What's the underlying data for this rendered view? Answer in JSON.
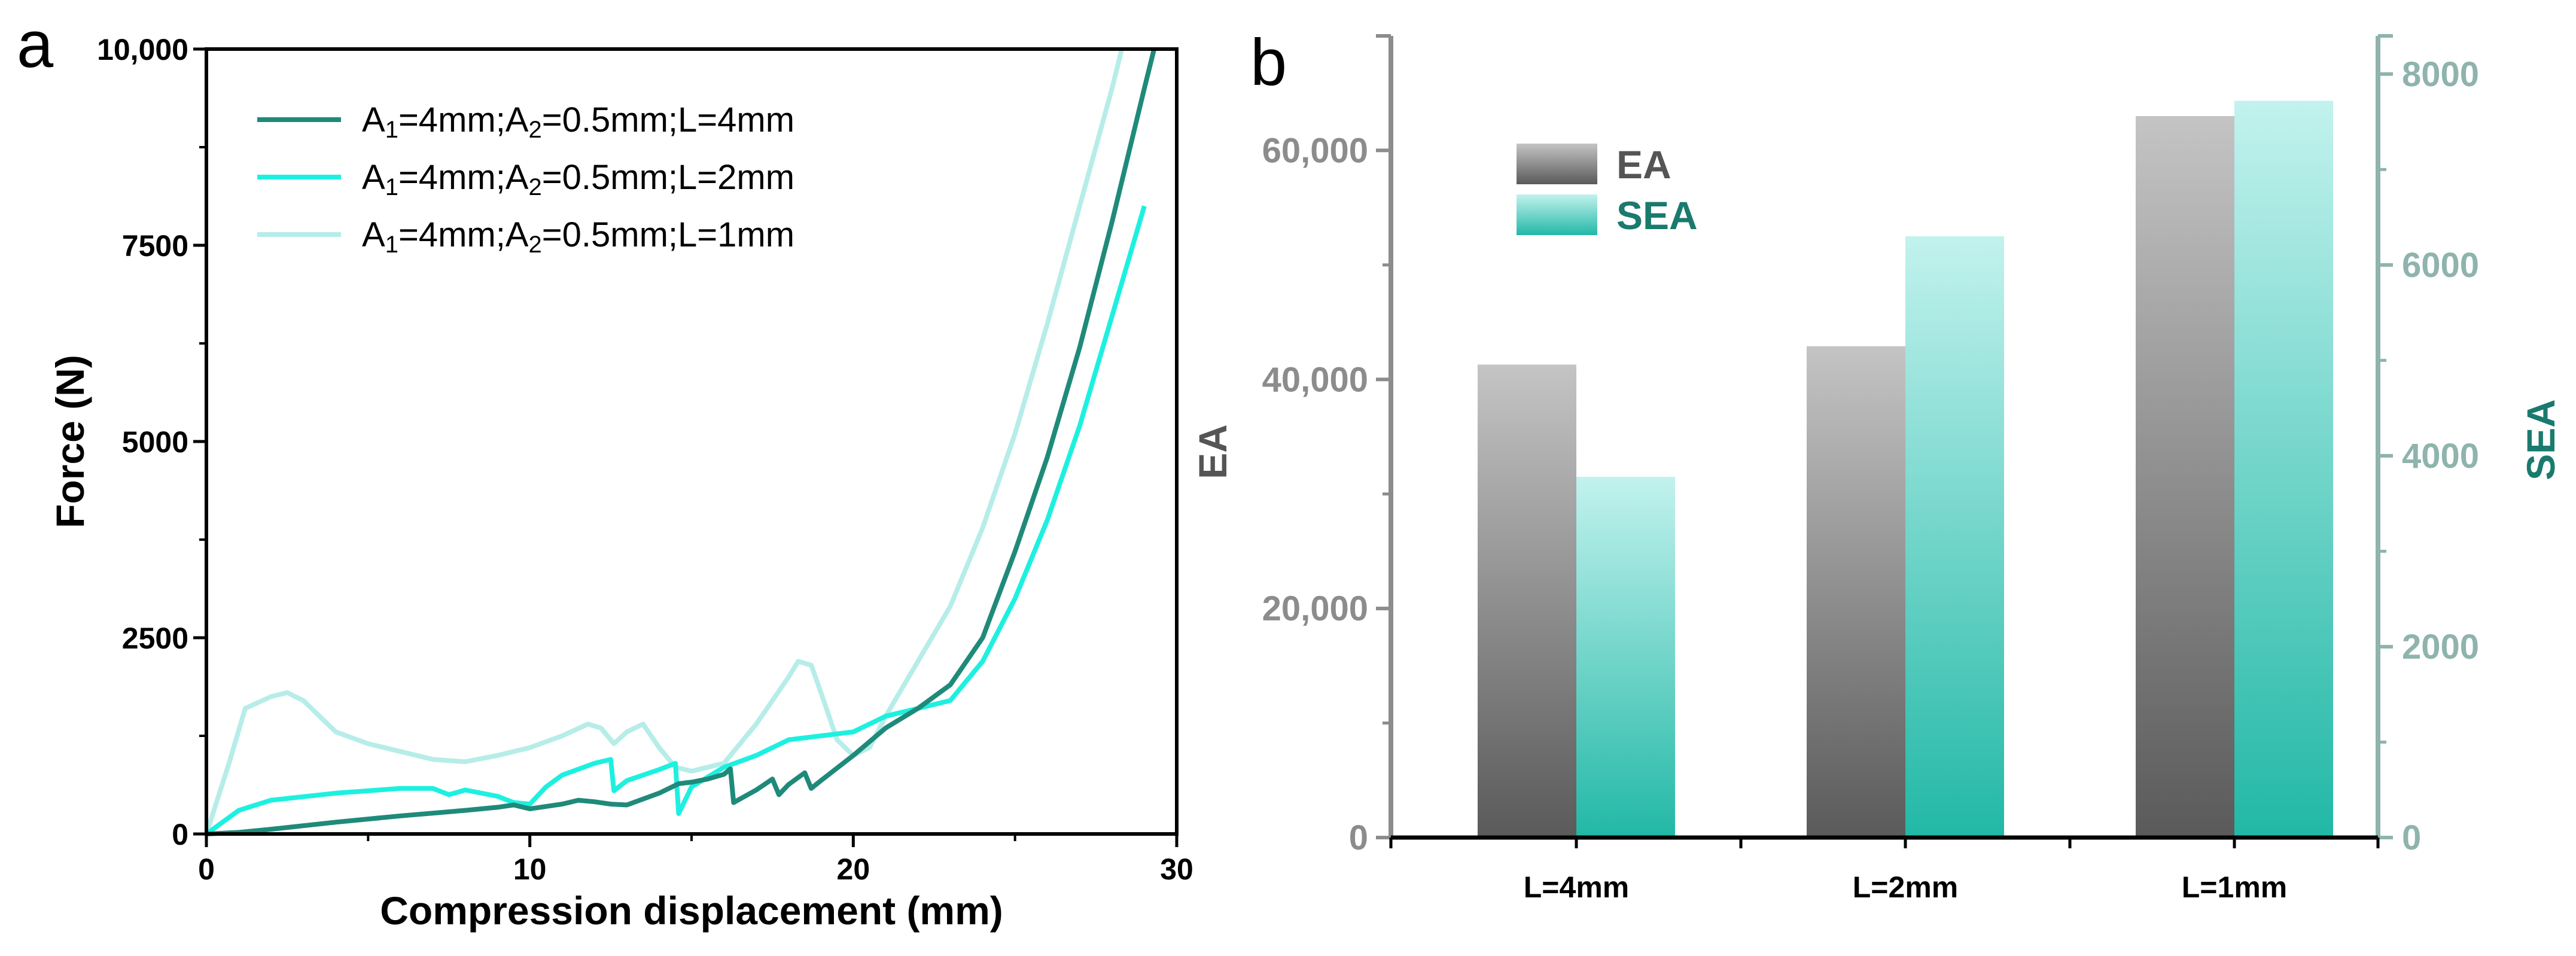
{
  "chart_data": [
    {
      "panel": "a",
      "type": "line",
      "xlabel": "Compression displacement (mm)",
      "ylabel": "Force (N)",
      "xlim": [
        0,
        30
      ],
      "ylim": [
        0,
        10000
      ],
      "xticks": [
        "0",
        "10",
        "20",
        "30"
      ],
      "yticks": [
        "0",
        "2500",
        "5000",
        "7500",
        "10,000"
      ],
      "legend_position": "top-left",
      "series": [
        {
          "name": "A1=4mm;A2=0.5mm;L=4mm",
          "legend_parts": [
            "A",
            "1",
            "=4mm;A",
            "2",
            "=0.5mm;L=4mm"
          ],
          "color": "#1f8a7a",
          "points": [
            [
              0,
              0
            ],
            [
              1,
              20
            ],
            [
              2,
              60
            ],
            [
              4,
              150
            ],
            [
              6,
              230
            ],
            [
              8,
              300
            ],
            [
              9,
              340
            ],
            [
              9.5,
              370
            ],
            [
              10,
              320
            ],
            [
              11,
              380
            ],
            [
              11.5,
              430
            ],
            [
              12,
              410
            ],
            [
              12.5,
              380
            ],
            [
              13,
              370
            ],
            [
              14,
              520
            ],
            [
              14.6,
              640
            ],
            [
              15,
              660
            ],
            [
              15.5,
              700
            ],
            [
              16,
              760
            ],
            [
              16.2,
              830
            ],
            [
              16.3,
              400
            ],
            [
              17,
              560
            ],
            [
              17.5,
              700
            ],
            [
              17.7,
              500
            ],
            [
              18,
              630
            ],
            [
              18.5,
              780
            ],
            [
              18.7,
              580
            ],
            [
              19,
              680
            ],
            [
              20,
              1000
            ],
            [
              21,
              1350
            ],
            [
              22,
              1600
            ],
            [
              23,
              1900
            ],
            [
              24,
              2500
            ],
            [
              25,
              3600
            ],
            [
              26,
              4800
            ],
            [
              27,
              6200
            ],
            [
              28,
              7800
            ],
            [
              29,
              9500
            ],
            [
              29.3,
              10000
            ]
          ]
        },
        {
          "name": "A1=4mm;A2=0.5mm;L=2mm",
          "legend_parts": [
            "A",
            "1",
            "=4mm;A",
            "2",
            "=0.5mm;L=2mm"
          ],
          "color": "#1ef0e0",
          "points": [
            [
              0,
              0
            ],
            [
              0.5,
              150
            ],
            [
              1,
              300
            ],
            [
              2,
              430
            ],
            [
              4,
              520
            ],
            [
              6,
              580
            ],
            [
              7,
              580
            ],
            [
              7.5,
              500
            ],
            [
              8,
              560
            ],
            [
              9,
              480
            ],
            [
              9.5,
              400
            ],
            [
              10,
              380
            ],
            [
              10.5,
              600
            ],
            [
              11,
              750
            ],
            [
              12,
              900
            ],
            [
              12.5,
              950
            ],
            [
              12.6,
              550
            ],
            [
              13,
              680
            ],
            [
              14,
              820
            ],
            [
              14.5,
              900
            ],
            [
              14.6,
              260
            ],
            [
              15,
              600
            ],
            [
              16,
              850
            ],
            [
              17,
              1000
            ],
            [
              18,
              1200
            ],
            [
              19,
              1250
            ],
            [
              20,
              1300
            ],
            [
              21,
              1500
            ],
            [
              22,
              1600
            ],
            [
              23,
              1700
            ],
            [
              24,
              2200
            ],
            [
              25,
              3000
            ],
            [
              26,
              4000
            ],
            [
              27,
              5200
            ],
            [
              28,
              6600
            ],
            [
              29,
              8000
            ]
          ]
        },
        {
          "name": "A1=4mm;A2=0.5mm;L=1mm",
          "legend_parts": [
            "A",
            "1",
            "=4mm;A",
            "2",
            "=0.5mm;L=1mm"
          ],
          "color": "#b6ede8",
          "points": [
            [
              0,
              0
            ],
            [
              0.7,
              900
            ],
            [
              1.2,
              1600
            ],
            [
              2,
              1750
            ],
            [
              2.5,
              1800
            ],
            [
              3,
              1700
            ],
            [
              3.5,
              1500
            ],
            [
              4,
              1300
            ],
            [
              5,
              1150
            ],
            [
              6,
              1050
            ],
            [
              7,
              950
            ],
            [
              8,
              920
            ],
            [
              9,
              1000
            ],
            [
              10,
              1100
            ],
            [
              11,
              1250
            ],
            [
              11.8,
              1400
            ],
            [
              12.2,
              1350
            ],
            [
              12.6,
              1150
            ],
            [
              13,
              1300
            ],
            [
              13.5,
              1400
            ],
            [
              14,
              1100
            ],
            [
              14.5,
              850
            ],
            [
              15,
              800
            ],
            [
              16,
              900
            ],
            [
              17,
              1400
            ],
            [
              17.5,
              1700
            ],
            [
              18,
              2000
            ],
            [
              18.3,
              2200
            ],
            [
              18.7,
              2150
            ],
            [
              19,
              1800
            ],
            [
              19.5,
              1200
            ],
            [
              20,
              1000
            ],
            [
              20.5,
              1100
            ],
            [
              21,
              1500
            ],
            [
              22,
              2200
            ],
            [
              23,
              2900
            ],
            [
              24,
              3900
            ],
            [
              25,
              5100
            ],
            [
              26,
              6500
            ],
            [
              27,
              8000
            ],
            [
              28,
              9500
            ],
            [
              28.3,
              10000
            ]
          ]
        }
      ]
    },
    {
      "panel": "b",
      "type": "bar",
      "categories": [
        "L=4mm",
        "L=2mm",
        "L=1mm"
      ],
      "left_axis": {
        "label": "EA",
        "ylim": [
          0,
          70000
        ],
        "ticks": [
          0,
          20000,
          40000,
          60000
        ],
        "tick_labels": [
          "0",
          "20,000",
          "40,000",
          "60,000"
        ]
      },
      "right_axis": {
        "label": "SEA",
        "ylim": [
          0,
          8400
        ],
        "ticks": [
          0,
          2000,
          4000,
          6000,
          8000
        ],
        "tick_labels": [
          "0",
          "2000",
          "4000",
          "6000",
          "8000"
        ]
      },
      "legend_position": "top-left",
      "series": [
        {
          "name": "EA",
          "axis": "left",
          "values": [
            41300,
            42900,
            63000
          ],
          "color_top": "#c4c4c4",
          "color_bottom": "#5a5a5a",
          "legend_text_color": "#555555"
        },
        {
          "name": "SEA",
          "axis": "right",
          "values": [
            3780,
            6300,
            7720
          ],
          "color_top": "#c2f2ee",
          "color_bottom": "#22b8a6",
          "legend_text_color": "#1a7a6e"
        }
      ]
    }
  ],
  "panel_labels": {
    "a": "a",
    "b": "b"
  }
}
